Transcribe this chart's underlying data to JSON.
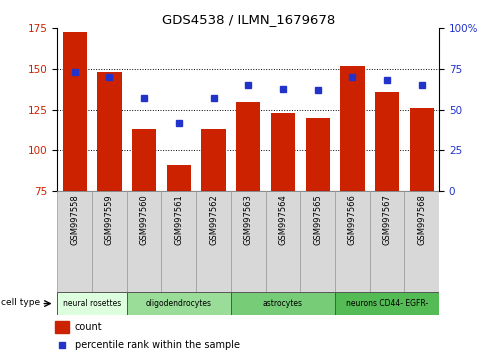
{
  "title": "GDS4538 / ILMN_1679678",
  "samples": [
    "GSM997558",
    "GSM997559",
    "GSM997560",
    "GSM997561",
    "GSM997562",
    "GSM997563",
    "GSM997564",
    "GSM997565",
    "GSM997566",
    "GSM997567",
    "GSM997568"
  ],
  "counts": [
    173,
    148,
    113,
    91,
    113,
    130,
    123,
    120,
    152,
    136,
    126
  ],
  "percentiles": [
    73,
    70,
    57,
    42,
    57,
    65,
    63,
    62,
    70,
    68,
    65
  ],
  "cell_types": [
    {
      "label": "neural rosettes",
      "start": 0,
      "end": 2,
      "color": "#ddffdd"
    },
    {
      "label": "oligodendrocytes",
      "start": 2,
      "end": 5,
      "color": "#99dd99"
    },
    {
      "label": "astrocytes",
      "start": 5,
      "end": 8,
      "color": "#77cc77"
    },
    {
      "label": "neurons CD44- EGFR-",
      "start": 8,
      "end": 11,
      "color": "#55bb55"
    }
  ],
  "ylim_left": [
    75,
    175
  ],
  "ylim_right": [
    0,
    100
  ],
  "yticks_left": [
    75,
    100,
    125,
    150,
    175
  ],
  "yticks_right": [
    0,
    25,
    50,
    75,
    100
  ],
  "bar_color": "#cc2200",
  "dot_color": "#2233cc",
  "bar_bg_color": "#d8d8d8",
  "legend_count_label": "count",
  "legend_pct_label": "percentile rank within the sample"
}
